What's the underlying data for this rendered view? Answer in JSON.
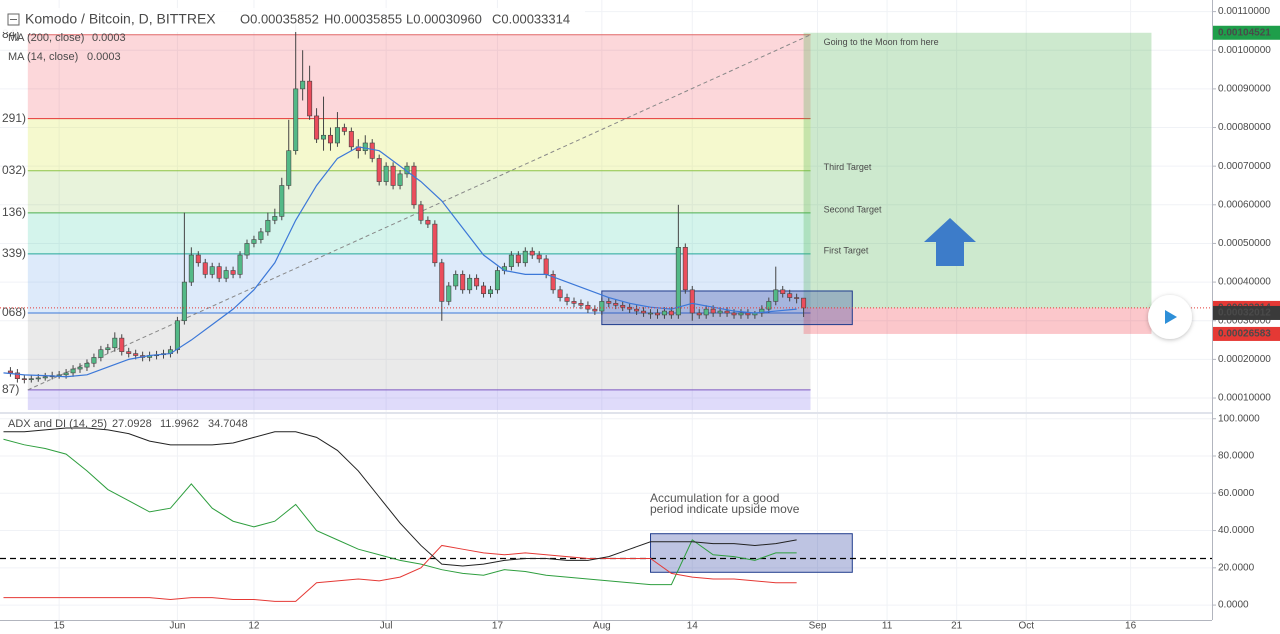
{
  "chart_data": [
    {
      "type": "candlestick",
      "title": "Komodo / Bitcoin, D, BITTREX",
      "ohlc_legend": [
        "O0.00035852",
        "H0.00035855",
        "L0.00030960",
        "C0.00033314"
      ],
      "indicators": [
        {
          "name": "MA (200, close)",
          "value": 0.0003,
          "color": "#e0453a"
        },
        {
          "name": "MA (14, close)",
          "value": 0.0003,
          "color": "#3c78d8"
        }
      ],
      "up_color": "#53b987",
      "down_color": "#eb4d5c",
      "x": [
        -7,
        -6,
        -5,
        -4,
        -3,
        -2,
        -1,
        0,
        1,
        2,
        3,
        4,
        5,
        6,
        7,
        8,
        9,
        10,
        11,
        12,
        13,
        14,
        15,
        16,
        17,
        18,
        19,
        20,
        21,
        22,
        23,
        24,
        25,
        26,
        27,
        28,
        29,
        30,
        31,
        32,
        33,
        34,
        35,
        36,
        37,
        38,
        39,
        40,
        41,
        42,
        43,
        44,
        45,
        46,
        47,
        48,
        49,
        50,
        51,
        52,
        53,
        54,
        55,
        56,
        57,
        58,
        59,
        60,
        61,
        62,
        63,
        64,
        65,
        66,
        67,
        68,
        69,
        70,
        71,
        72,
        73,
        74,
        75,
        76,
        77,
        78,
        79,
        80,
        81,
        82,
        83,
        84,
        85,
        86,
        87,
        88,
        89,
        90,
        91,
        92,
        93,
        94,
        95,
        96,
        97,
        98,
        99,
        100,
        101,
        102,
        103,
        104,
        105,
        106,
        107
      ],
      "open": [
        0.00017,
        0.000165,
        0.00015,
        0.000148,
        0.00015,
        0.000152,
        0.000155,
        0.000158,
        0.00016,
        0.000165,
        0.000175,
        0.00018,
        0.00019,
        0.000205,
        0.000225,
        0.00023,
        0.000255,
        0.00022,
        0.000215,
        0.00021,
        0.000205,
        0.00021,
        0.000212,
        0.000215,
        0.000225,
        0.0003,
        0.0004,
        0.00047,
        0.00045,
        0.00042,
        0.00044,
        0.00041,
        0.00043,
        0.00042,
        0.00047,
        0.0005,
        0.00051,
        0.00053,
        0.00056,
        0.00057,
        0.00065,
        0.00074,
        0.0009,
        0.00092,
        0.00083,
        0.00077,
        0.00078,
        0.00076,
        0.0008,
        0.00079,
        0.00075,
        0.00074,
        0.00076,
        0.00072,
        0.00066,
        0.0007,
        0.00065,
        0.00068,
        0.0007,
        0.0006,
        0.00056,
        0.00055,
        0.00045,
        0.00035,
        0.00039,
        0.00042,
        0.00038,
        0.00041,
        0.00039,
        0.00037,
        0.00038,
        0.00043,
        0.00044,
        0.00047,
        0.00045,
        0.00048,
        0.00047,
        0.00046,
        0.00042,
        0.00038,
        0.00036,
        0.00035,
        0.000345,
        0.00034,
        0.00033,
        0.000325,
        0.00035,
        0.000345,
        0.00034,
        0.000335,
        0.00033,
        0.000325,
        0.00032,
        0.00032,
        0.000315,
        0.000325,
        0.000315,
        0.00049,
        0.00038,
        0.00032,
        0.000315,
        0.00033,
        0.00032,
        0.000325,
        0.00032,
        0.000315,
        0.00032,
        0.000315,
        0.00032,
        0.00033,
        0.00035,
        0.00038,
        0.00037,
        0.00036,
        0.00035852
      ],
      "high": [
        0.00018,
        0.000175,
        0.00016,
        0.00016,
        0.000162,
        0.000165,
        0.000168,
        0.00017,
        0.000175,
        0.000185,
        0.00019,
        0.0002,
        0.000215,
        0.000235,
        0.00024,
        0.00027,
        0.000265,
        0.00023,
        0.000225,
        0.00022,
        0.00022,
        0.000222,
        0.000225,
        0.000235,
        0.00031,
        0.00058,
        0.00049,
        0.00048,
        0.00046,
        0.00045,
        0.00045,
        0.00044,
        0.00044,
        0.00048,
        0.00051,
        0.00052,
        0.00054,
        0.00058,
        0.00059,
        0.00067,
        0.00082,
        0.00108,
        0.001,
        0.00096,
        0.00085,
        0.00088,
        0.0008,
        0.00084,
        0.00081,
        0.0008,
        0.00077,
        0.00078,
        0.00077,
        0.00073,
        0.00071,
        0.00071,
        0.00069,
        0.00071,
        0.00071,
        0.00061,
        0.00057,
        0.00056,
        0.00046,
        0.0004,
        0.00043,
        0.00043,
        0.00042,
        0.00042,
        0.0004,
        0.00039,
        0.00044,
        0.00045,
        0.00048,
        0.00048,
        0.00049,
        0.00049,
        0.00048,
        0.00047,
        0.00043,
        0.00039,
        0.00037,
        0.00036,
        0.000355,
        0.00035,
        0.00034,
        0.00036,
        0.00036,
        0.000355,
        0.00035,
        0.000345,
        0.00034,
        0.000335,
        0.00033,
        0.00033,
        0.000335,
        0.000335,
        0.0006,
        0.0005,
        0.00039,
        0.00033,
        0.00034,
        0.00034,
        0.000335,
        0.000335,
        0.00033,
        0.00033,
        0.00033,
        0.000325,
        0.00034,
        0.00036,
        0.00044,
        0.00039,
        0.00038,
        0.00037,
        0.00035855
      ],
      "low": [
        0.000155,
        0.00014,
        0.000138,
        0.00014,
        0.000142,
        0.000145,
        0.000148,
        0.00015,
        0.00015,
        0.000155,
        0.000165,
        0.00017,
        0.00018,
        0.000195,
        0.000215,
        0.00022,
        0.00021,
        0.000205,
        0.0002,
        0.000195,
        0.000195,
        0.0002,
        0.000202,
        0.000205,
        0.000215,
        0.00029,
        0.00039,
        0.00044,
        0.00041,
        0.00041,
        0.0004,
        0.0004,
        0.00041,
        0.00041,
        0.00046,
        0.00049,
        0.0005,
        0.00052,
        0.00055,
        0.00056,
        0.00064,
        0.00073,
        0.00087,
        0.00082,
        0.00076,
        0.00074,
        0.00074,
        0.00075,
        0.00078,
        0.00074,
        0.00072,
        0.00073,
        0.00071,
        0.00065,
        0.00065,
        0.00064,
        0.00064,
        0.00067,
        0.00059,
        0.00055,
        0.00054,
        0.00044,
        0.0003,
        0.00034,
        0.00038,
        0.00037,
        0.00037,
        0.00038,
        0.00036,
        0.00036,
        0.00037,
        0.00042,
        0.00043,
        0.00044,
        0.00044,
        0.00046,
        0.00045,
        0.00041,
        0.00037,
        0.00035,
        0.00034,
        0.000335,
        0.00033,
        0.00032,
        0.000315,
        0.000315,
        0.000335,
        0.00033,
        0.000325,
        0.00032,
        0.000315,
        0.00031,
        0.000305,
        0.000305,
        0.000305,
        0.000305,
        0.000305,
        0.00037,
        0.0003,
        0.000305,
        0.000305,
        0.00031,
        0.00031,
        0.00031,
        0.000305,
        0.000305,
        0.000305,
        0.000305,
        0.00031,
        0.00032,
        0.00034,
        0.00036,
        0.00035,
        0.000345,
        0.0003096
      ],
      "close": [
        0.000165,
        0.00015,
        0.000148,
        0.00015,
        0.000152,
        0.000155,
        0.000158,
        0.00016,
        0.000165,
        0.000175,
        0.00018,
        0.00019,
        0.000205,
        0.000225,
        0.00023,
        0.000255,
        0.00022,
        0.000215,
        0.00021,
        0.000205,
        0.00021,
        0.000212,
        0.000215,
        0.000225,
        0.0003,
        0.0004,
        0.00047,
        0.00045,
        0.00042,
        0.00044,
        0.00041,
        0.00043,
        0.00042,
        0.00047,
        0.0005,
        0.00051,
        0.00053,
        0.00056,
        0.00057,
        0.00065,
        0.00074,
        0.0009,
        0.00092,
        0.00083,
        0.00077,
        0.00078,
        0.00076,
        0.0008,
        0.00079,
        0.00075,
        0.00074,
        0.00076,
        0.00072,
        0.00066,
        0.0007,
        0.00065,
        0.00068,
        0.0007,
        0.0006,
        0.00056,
        0.00055,
        0.00045,
        0.00035,
        0.00039,
        0.00042,
        0.00038,
        0.00041,
        0.00039,
        0.00037,
        0.00038,
        0.00043,
        0.00044,
        0.00047,
        0.00045,
        0.00048,
        0.00047,
        0.00046,
        0.00042,
        0.00038,
        0.00036,
        0.00035,
        0.000345,
        0.00034,
        0.00033,
        0.000325,
        0.00035,
        0.000345,
        0.00034,
        0.000335,
        0.00033,
        0.000325,
        0.00032,
        0.00032,
        0.000315,
        0.000325,
        0.000315,
        0.00049,
        0.00038,
        0.00032,
        0.000315,
        0.00033,
        0.00032,
        0.000325,
        0.00032,
        0.000315,
        0.00032,
        0.000315,
        0.00032,
        0.00033,
        0.00035,
        0.00038,
        0.00037,
        0.00036,
        0.00035852,
        0.00033314
      ],
      "ma14": {
        "color": "#3c78d8",
        "x": [
          -8,
          -5,
          -2,
          1,
          4,
          7,
          10,
          13,
          16,
          19,
          22,
          25,
          28,
          31,
          34,
          37,
          40,
          43,
          46,
          49,
          52,
          55,
          58,
          61,
          64,
          67,
          70,
          73,
          76,
          79,
          82,
          85,
          88,
          91,
          94,
          97,
          100,
          103,
          106
        ],
        "values": [
          0.000165,
          0.00016,
          0.000158,
          0.000155,
          0.00016,
          0.00018,
          0.0002,
          0.00021,
          0.000215,
          0.00025,
          0.00029,
          0.00033,
          0.00038,
          0.00045,
          0.00056,
          0.00065,
          0.00072,
          0.00075,
          0.00074,
          0.0007,
          0.00066,
          0.00061,
          0.00054,
          0.00047,
          0.00043,
          0.00042,
          0.00042,
          0.0004,
          0.00038,
          0.00036,
          0.000345,
          0.000335,
          0.00033,
          0.000345,
          0.000335,
          0.000325,
          0.00032,
          0.000325,
          0.00033
        ]
      },
      "fib_x": [
        -4.5,
        108
      ],
      "fib_levels": [
        {
          "value": 0.00104,
          "label": "84)",
          "color": "#e06666",
          "fill": "rgba(242,54,69,0.2)"
        },
        {
          "value": 0.000823,
          "label": "291)",
          "color": "#e53935",
          "fill": "rgba(215,230,60,0.25)"
        },
        {
          "value": 0.000688,
          "label": "032)",
          "color": "#8bc34a",
          "fill": "rgba(139,195,74,0.2)",
          "target": "Third Target"
        },
        {
          "value": 0.000579,
          "label": "136)",
          "color": "#4caf50",
          "fill": "rgba(38,198,160,0.2)",
          "target": "Second Target"
        },
        {
          "value": 0.000473,
          "label": "339)",
          "color": "#26a69a",
          "fill": "rgba(100,160,230,0.22)",
          "target": "First Target"
        },
        {
          "value": 0.00032,
          "label": "068)",
          "color": "#3c78d8",
          "fill": "rgba(150,150,150,0.2)"
        },
        {
          "value": 0.000121,
          "label": "87)",
          "color": "#7e57c2",
          "fill": "rgba(110,90,230,0.22)"
        }
      ],
      "trend": {
        "x": [
          -4.5,
          108
        ],
        "values": [
          0.000121,
          0.00104
        ]
      },
      "position": {
        "days": [
          107,
          157
        ],
        "target": 0.00104521,
        "entry": 0.00033314,
        "stop": 0.00026583,
        "note": "Going to the Moon from here"
      },
      "box": {
        "days": [
          78,
          114
        ],
        "price": [
          0.00029,
          0.000377
        ]
      },
      "price_tags": [
        {
          "value": 0.00104521,
          "color": "#1e9e4a"
        },
        {
          "value": 0.00033314,
          "color": "#e53935"
        },
        {
          "value": 0.00032012,
          "color": "#3a3a3a"
        },
        {
          "value": 0.00026583,
          "color": "#e53935"
        }
      ],
      "xlim": [
        -8.5,
        165.7
      ],
      "ylim": [
        6.9e-05,
        0.00113
      ],
      "xticks": [
        {
          "value": 0,
          "label": "15"
        },
        {
          "value": 17,
          "label": "Jun"
        },
        {
          "value": 28,
          "label": "12"
        },
        {
          "value": 47,
          "label": "Jul"
        },
        {
          "value": 63,
          "label": "17"
        },
        {
          "value": 78,
          "label": "Aug"
        },
        {
          "value": 91,
          "label": "14"
        },
        {
          "value": 109,
          "label": "Sep"
        },
        {
          "value": 119,
          "label": "11"
        },
        {
          "value": 129,
          "label": "21"
        },
        {
          "value": 139,
          "label": "Oct"
        },
        {
          "value": 154,
          "label": "16"
        }
      ],
      "yticks": [
        {
          "value": 0.0011,
          "label": "0.00110000"
        },
        {
          "value": 0.001,
          "label": "0.00100000"
        },
        {
          "value": 0.0009,
          "label": "0.00090000"
        },
        {
          "value": 0.0008,
          "label": "0.00080000"
        },
        {
          "value": 0.0007,
          "label": "0.00070000"
        },
        {
          "value": 0.0006,
          "label": "0.00060000"
        },
        {
          "value": 0.0005,
          "label": "0.00050000"
        },
        {
          "value": 0.0004,
          "label": "0.00040000"
        },
        {
          "value": 0.0003,
          "label": "0.00030000"
        },
        {
          "value": 0.0002,
          "label": "0.00020000"
        },
        {
          "value": 0.0001,
          "label": "0.00010000"
        }
      ],
      "grid": true
    },
    {
      "type": "line",
      "title": "ADX and DI (14, 25)",
      "x": [
        -8,
        -5,
        -2,
        1,
        4,
        7,
        10,
        13,
        16,
        19,
        22,
        25,
        28,
        31,
        34,
        37,
        40,
        43,
        46,
        49,
        52,
        55,
        58,
        61,
        64,
        67,
        70,
        73,
        76,
        79,
        82,
        85,
        88,
        91,
        94,
        97,
        100,
        103,
        106
      ],
      "series": [
        {
          "color": "#2e9e3e",
          "current": 27.0928,
          "values": [
            89,
            86,
            84,
            81,
            72,
            62,
            56,
            50,
            52,
            65,
            52,
            45,
            42,
            45,
            54,
            40,
            35,
            30,
            27,
            24,
            22,
            19,
            17,
            16,
            19,
            18,
            16,
            15,
            14,
            13,
            12,
            11,
            11,
            35,
            27,
            26,
            24,
            28,
            28
          ]
        },
        {
          "color": "#e53935",
          "current": 11.9962,
          "values": [
            4,
            4,
            4,
            4,
            4,
            4,
            4,
            4,
            3,
            4,
            4,
            3,
            3,
            2,
            2,
            12,
            13,
            14,
            13,
            15,
            20,
            32,
            30,
            28,
            27,
            28,
            27,
            26,
            25,
            25,
            25,
            25,
            17,
            15,
            14,
            14,
            13,
            12,
            12
          ]
        },
        {
          "color": "#222222",
          "current": 34.7048,
          "values": [
            93,
            93,
            94,
            95,
            95,
            94,
            92,
            88,
            86,
            86,
            86,
            87,
            90,
            93,
            93,
            90,
            83,
            72,
            58,
            44,
            32,
            22,
            21,
            22,
            24,
            25,
            25,
            24,
            24,
            26,
            30,
            34,
            34,
            34,
            33,
            33,
            32,
            33,
            35
          ]
        }
      ],
      "hline": 25,
      "box": {
        "days": [
          85,
          114
        ],
        "range": [
          17.6,
          38.3
        ]
      },
      "annotation": "Accumulation for a good period indicate upside move",
      "ylim": [
        -8,
        102
      ],
      "yticks": [
        {
          "value": 100,
          "label": "100.0000"
        },
        {
          "value": 80,
          "label": "80.0000"
        },
        {
          "value": 60,
          "label": "60.0000"
        },
        {
          "value": 40,
          "label": "40.0000"
        },
        {
          "value": 20,
          "label": "20.0000"
        },
        {
          "value": 0,
          "label": "0.0000"
        }
      ],
      "grid": true
    }
  ]
}
